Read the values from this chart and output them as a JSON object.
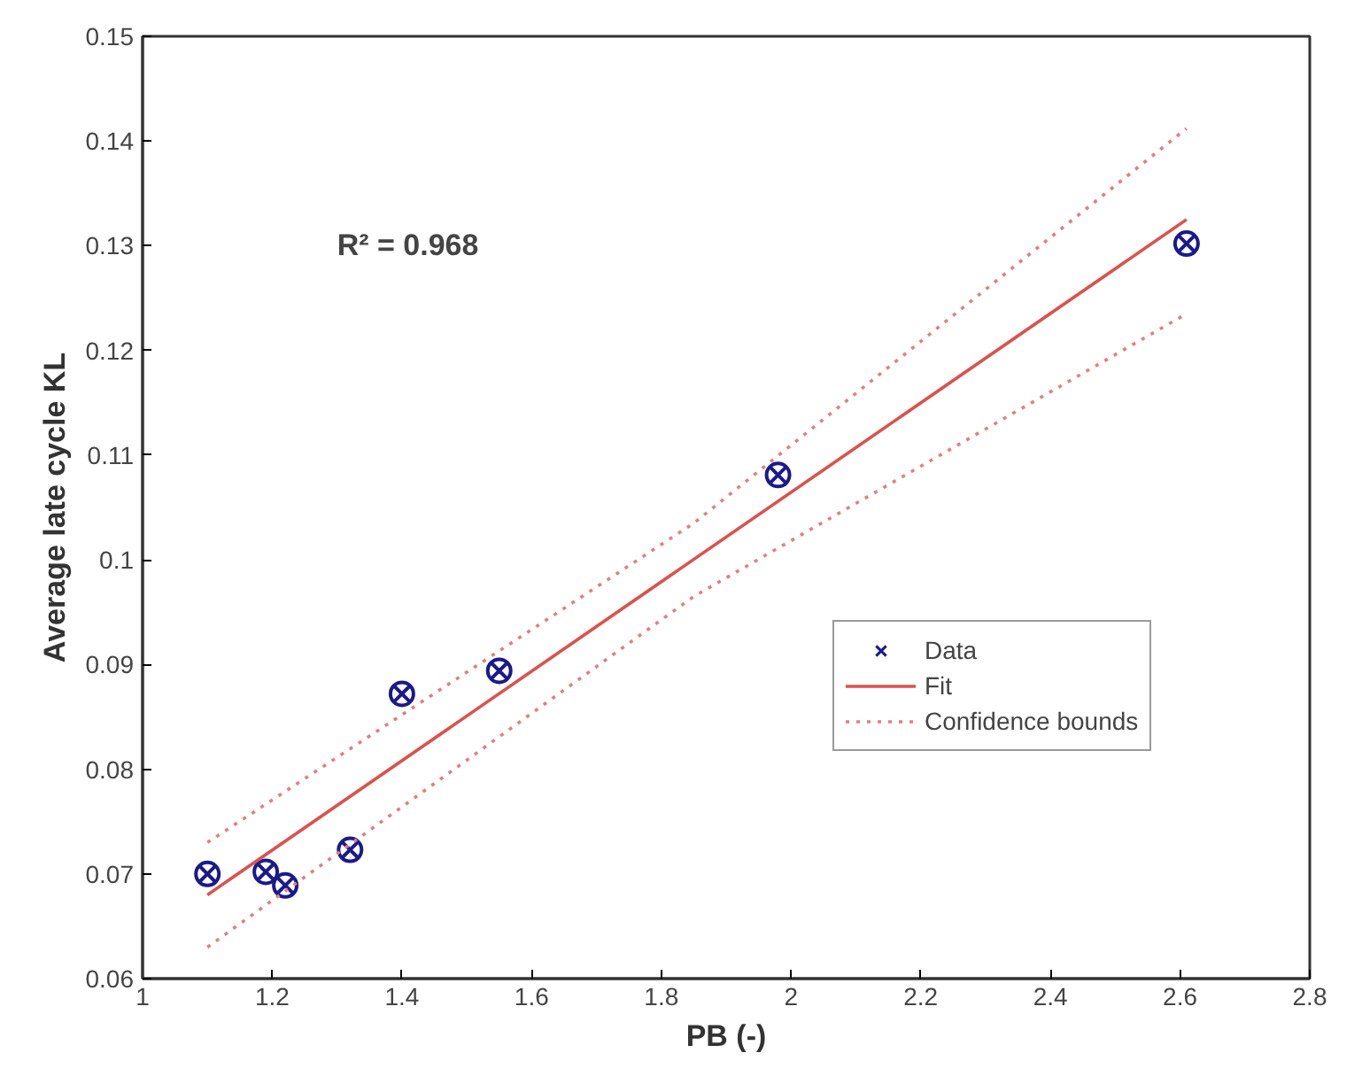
{
  "chart_data": {
    "type": "scatter",
    "xlabel": "PB (-)",
    "ylabel": "Average late cycle KL",
    "xlim": [
      1,
      2.8
    ],
    "xticks": [
      1,
      1.2,
      1.4,
      1.6,
      1.8,
      2,
      2.2,
      2.4,
      2.6,
      2.8
    ],
    "ylim": [
      0.06,
      0.15
    ],
    "yticks": [
      0.06,
      0.07,
      0.08,
      0.09,
      0.1,
      0.11,
      0.12,
      0.13,
      0.14,
      0.15
    ],
    "grid": false,
    "legend": "right",
    "annotations": [
      "R² = 0.968"
    ],
    "series": [
      {
        "name": "Data",
        "marker": "cross",
        "color": "#1a1a8c",
        "x": [
          1.1,
          1.19,
          1.22,
          1.32,
          1.4,
          1.55,
          1.98,
          2.61
        ],
        "values": [
          0.07,
          0.0702,
          0.0689,
          0.0723,
          0.0872,
          0.0894,
          0.1081,
          0.1302
        ]
      },
      {
        "name": "Fit",
        "type": "line",
        "color": "#d9534f",
        "line_style": "solid",
        "x": [
          1.1,
          2.61
        ],
        "values": [
          0.068,
          0.1325
        ]
      },
      {
        "name": "Confidence bounds",
        "type": "line",
        "color": "#e08080",
        "line_style": "dotted",
        "x": [
          1.1,
          1.85,
          2.61
        ],
        "values": [
          0.073,
          0.1035,
          0.1412
        ]
      },
      {
        "type": "line",
        "color": "#e08080",
        "line_style": "dotted",
        "x": [
          1.1,
          1.85,
          2.61
        ],
        "values": [
          0.063,
          0.0965,
          0.1235
        ]
      }
    ]
  }
}
